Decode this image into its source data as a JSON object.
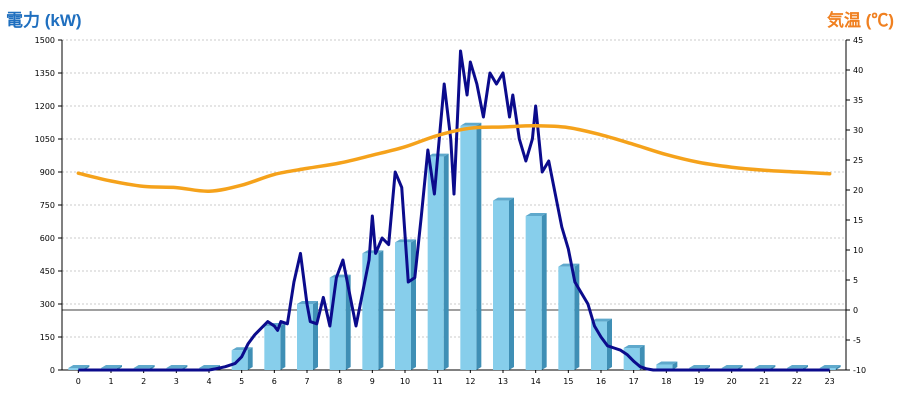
{
  "chart_data": {
    "type": "bar",
    "left_axis_title": "電力 (kW)",
    "right_axis_title": "気温 (℃)",
    "colors": {
      "left_title": "#1f6fbf",
      "right_title": "#f08020",
      "bar_front": "#87ceeb",
      "bar_side": "#3f8fb5",
      "bar_top": "#5fa9cc",
      "power_line": "#0b0b8c",
      "temp_line": "#f5a21b",
      "grid": "#bbbbbb"
    },
    "left_axis": {
      "min": 0,
      "max": 1500,
      "ticks": [
        0,
        150,
        300,
        450,
        600,
        750,
        900,
        1050,
        1200,
        1350,
        1500
      ]
    },
    "right_axis": {
      "min": -10,
      "max": 45,
      "ticks": [
        -10,
        -5,
        0,
        5,
        10,
        15,
        20,
        25,
        30,
        35,
        40,
        45
      ]
    },
    "x_ticks": [
      "0",
      "1",
      "2",
      "3",
      "4",
      "5",
      "6",
      "7",
      "8",
      "9",
      "10",
      "11",
      "12",
      "13",
      "14",
      "15",
      "16",
      "17",
      "18",
      "19",
      "20",
      "21",
      "22",
      "23"
    ],
    "categories": [
      0,
      1,
      2,
      3,
      4,
      5,
      6,
      7,
      8,
      9,
      10,
      11,
      12,
      13,
      14,
      15,
      16,
      17,
      18,
      19,
      20,
      21,
      22,
      23
    ],
    "series": [
      {
        "kind": "bar",
        "axis": "left",
        "values": [
          0,
          0,
          0,
          0,
          0,
          90,
          200,
          300,
          420,
          530,
          580,
          970,
          1110,
          770,
          700,
          470,
          220,
          100,
          25,
          0,
          0,
          0,
          0,
          0
        ]
      },
      {
        "kind": "line",
        "axis": "left",
        "x": [
          4.0,
          4.2,
          4.5,
          4.8,
          5.0,
          5.2,
          5.4,
          5.6,
          5.8,
          6.0,
          6.1,
          6.2,
          6.4,
          6.6,
          6.8,
          7.0,
          7.1,
          7.3,
          7.5,
          7.7,
          7.9,
          8.1,
          8.3,
          8.5,
          8.7,
          8.9,
          9.0,
          9.1,
          9.3,
          9.5,
          9.7,
          9.9,
          10.1,
          10.3,
          10.5,
          10.7,
          10.9,
          11.0,
          11.2,
          11.4,
          11.5,
          11.7,
          11.9,
          12.0,
          12.2,
          12.4,
          12.6,
          12.8,
          13.0,
          13.2,
          13.3,
          13.5,
          13.7,
          13.9,
          14.0,
          14.2,
          14.4,
          14.6,
          14.8,
          15.0,
          15.2,
          15.4,
          15.6,
          15.8,
          16.0,
          16.2,
          16.4,
          16.6,
          16.8,
          17.0,
          17.2,
          17.4,
          17.6,
          17.8,
          18.0
        ],
        "values": [
          0,
          5,
          15,
          30,
          60,
          120,
          160,
          190,
          220,
          200,
          180,
          220,
          210,
          400,
          530,
          300,
          220,
          210,
          330,
          200,
          420,
          500,
          350,
          200,
          350,
          500,
          700,
          530,
          600,
          570,
          900,
          830,
          400,
          420,
          700,
          1000,
          800,
          970,
          1300,
          1050,
          800,
          1450,
          1250,
          1400,
          1300,
          1150,
          1350,
          1300,
          1350,
          1150,
          1250,
          1050,
          950,
          1050,
          1200,
          900,
          950,
          800,
          650,
          550,
          400,
          350,
          300,
          200,
          150,
          110,
          100,
          90,
          70,
          40,
          15,
          5,
          0,
          0,
          0
        ]
      },
      {
        "kind": "line",
        "axis": "right",
        "x": [
          0,
          1,
          2,
          3,
          4,
          5,
          6,
          7,
          8,
          9,
          10,
          11,
          12,
          13,
          14,
          15,
          16,
          17,
          18,
          19,
          20,
          21,
          22,
          23
        ],
        "values": [
          22.8,
          21.5,
          20.6,
          20.4,
          19.8,
          20.8,
          22.6,
          23.6,
          24.5,
          25.8,
          27.2,
          29.1,
          30.3,
          30.5,
          30.7,
          30.4,
          29.2,
          27.6,
          25.9,
          24.6,
          23.8,
          23.3,
          23.0,
          22.7
        ]
      }
    ]
  }
}
